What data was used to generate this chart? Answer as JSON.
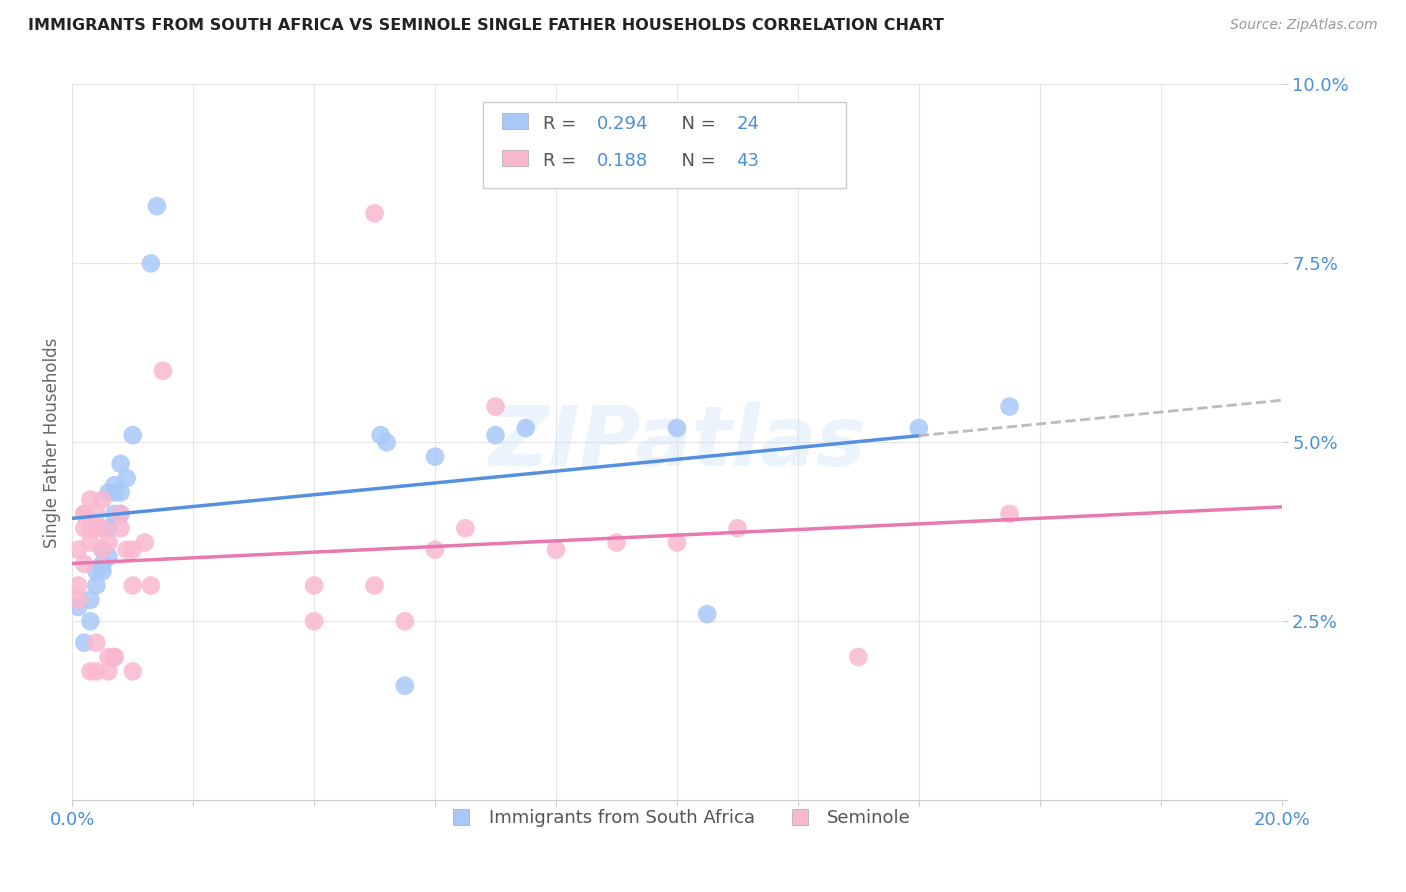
{
  "title": "IMMIGRANTS FROM SOUTH AFRICA VS SEMINOLE SINGLE FATHER HOUSEHOLDS CORRELATION CHART",
  "source": "Source: ZipAtlas.com",
  "ylabel": "Single Father Households",
  "xlim": [
    0,
    0.2
  ],
  "ylim": [
    0,
    0.1
  ],
  "blue_color": "#a8c8f8",
  "pink_color": "#f9b8d0",
  "trend_blue": "#5590e0",
  "trend_pink": "#e878b0",
  "trend_dashed_color": "#bbbbbb",
  "blue_scatter": [
    [
      0.001,
      0.027
    ],
    [
      0.002,
      0.022
    ],
    [
      0.003,
      0.025
    ],
    [
      0.003,
      0.028
    ],
    [
      0.004,
      0.032
    ],
    [
      0.004,
      0.03
    ],
    [
      0.005,
      0.032
    ],
    [
      0.005,
      0.035
    ],
    [
      0.005,
      0.033
    ],
    [
      0.006,
      0.034
    ],
    [
      0.006,
      0.038
    ],
    [
      0.006,
      0.043
    ],
    [
      0.007,
      0.043
    ],
    [
      0.007,
      0.044
    ],
    [
      0.007,
      0.04
    ],
    [
      0.008,
      0.043
    ],
    [
      0.008,
      0.04
    ],
    [
      0.008,
      0.047
    ],
    [
      0.009,
      0.045
    ],
    [
      0.01,
      0.051
    ],
    [
      0.013,
      0.075
    ],
    [
      0.014,
      0.083
    ],
    [
      0.051,
      0.051
    ],
    [
      0.052,
      0.05
    ],
    [
      0.055,
      0.016
    ],
    [
      0.06,
      0.048
    ],
    [
      0.07,
      0.051
    ],
    [
      0.075,
      0.052
    ],
    [
      0.1,
      0.052
    ],
    [
      0.105,
      0.026
    ],
    [
      0.14,
      0.052
    ],
    [
      0.155,
      0.055
    ]
  ],
  "pink_scatter": [
    [
      0.001,
      0.03
    ],
    [
      0.001,
      0.035
    ],
    [
      0.001,
      0.028
    ],
    [
      0.002,
      0.04
    ],
    [
      0.002,
      0.038
    ],
    [
      0.002,
      0.033
    ],
    [
      0.002,
      0.04
    ],
    [
      0.003,
      0.042
    ],
    [
      0.003,
      0.038
    ],
    [
      0.003,
      0.036
    ],
    [
      0.003,
      0.018
    ],
    [
      0.004,
      0.04
    ],
    [
      0.004,
      0.038
    ],
    [
      0.004,
      0.018
    ],
    [
      0.004,
      0.022
    ],
    [
      0.005,
      0.038
    ],
    [
      0.005,
      0.042
    ],
    [
      0.005,
      0.035
    ],
    [
      0.006,
      0.036
    ],
    [
      0.006,
      0.02
    ],
    [
      0.006,
      0.018
    ],
    [
      0.007,
      0.02
    ],
    [
      0.007,
      0.02
    ],
    [
      0.008,
      0.04
    ],
    [
      0.008,
      0.038
    ],
    [
      0.009,
      0.035
    ],
    [
      0.01,
      0.03
    ],
    [
      0.01,
      0.035
    ],
    [
      0.01,
      0.018
    ],
    [
      0.012,
      0.036
    ],
    [
      0.013,
      0.03
    ],
    [
      0.015,
      0.06
    ],
    [
      0.04,
      0.03
    ],
    [
      0.04,
      0.025
    ],
    [
      0.05,
      0.03
    ],
    [
      0.05,
      0.082
    ],
    [
      0.055,
      0.025
    ],
    [
      0.06,
      0.035
    ],
    [
      0.065,
      0.038
    ],
    [
      0.07,
      0.055
    ],
    [
      0.08,
      0.035
    ],
    [
      0.09,
      0.036
    ],
    [
      0.1,
      0.036
    ],
    [
      0.11,
      0.038
    ],
    [
      0.13,
      0.02
    ],
    [
      0.155,
      0.04
    ]
  ],
  "watermark": "ZIPatlas",
  "figsize": [
    14.06,
    8.92
  ],
  "dpi": 100
}
